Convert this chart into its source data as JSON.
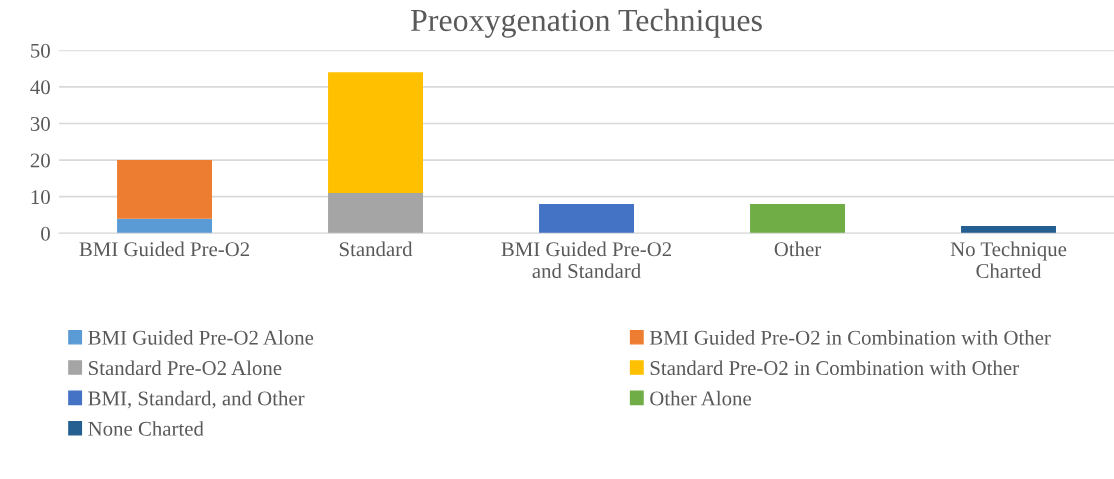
{
  "chart_data": {
    "type": "bar",
    "title": "Preoxygenation Techniques",
    "stacked": true,
    "categories": [
      "BMI Guided Pre-O2",
      "Standard",
      "BMI Guided Pre-O2\nand Standard",
      "Other",
      "No Technique\nCharted"
    ],
    "series": [
      {
        "name": "BMI Guided Pre-O2 Alone",
        "color": "#5b9bd5",
        "values": [
          4,
          null,
          null,
          null,
          null
        ]
      },
      {
        "name": "BMI Guided Pre-O2 in Combination with Other",
        "color": "#ed7d31",
        "values": [
          16,
          null,
          null,
          null,
          null
        ]
      },
      {
        "name": "Standard Pre-O2 Alone",
        "color": "#a5a5a5",
        "values": [
          null,
          11,
          null,
          null,
          null
        ]
      },
      {
        "name": "Standard Pre-O2 in Combination with Other",
        "color": "#ffc000",
        "values": [
          null,
          33,
          null,
          null,
          null
        ]
      },
      {
        "name": "BMI, Standard, and Other",
        "color": "#4472c4",
        "values": [
          null,
          null,
          8,
          null,
          null
        ]
      },
      {
        "name": "Other Alone",
        "color": "#70ad47",
        "values": [
          null,
          null,
          null,
          8,
          null
        ]
      },
      {
        "name": "None Charted",
        "color": "#255e91",
        "values": [
          null,
          null,
          null,
          null,
          2
        ]
      }
    ],
    "ylim": [
      0,
      50
    ],
    "yticks": [
      0,
      10,
      20,
      30,
      40,
      50
    ],
    "grid": "y",
    "legend": "bottom"
  }
}
